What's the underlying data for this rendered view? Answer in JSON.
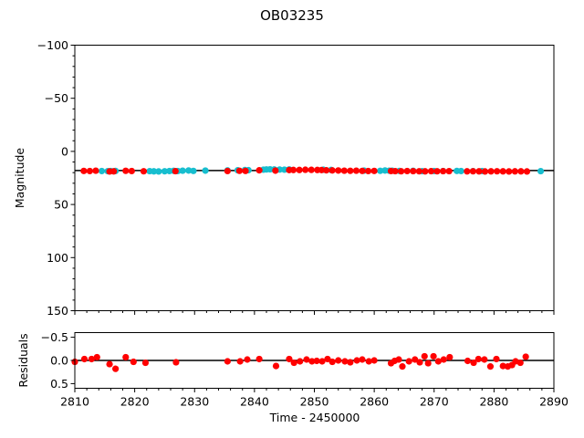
{
  "chart_data": [
    {
      "type": "scatter",
      "title": "OB03235",
      "xlabel": "",
      "ylabel": "Magnitude",
      "xlim": [
        2810,
        2890
      ],
      "ylim": [
        150,
        -100
      ],
      "y_inverted": true,
      "y_ticks": [
        -100,
        -50,
        0,
        50,
        100,
        150
      ],
      "y_tick_labels": [
        "−100",
        "−50",
        "0",
        "50",
        "100",
        "150"
      ],
      "grid": false,
      "model_line": {
        "y": 18,
        "color": "#000000"
      },
      "series": [
        {
          "color": "#17becf",
          "x": [
            2814.5,
            2815.5,
            2816.0,
            2816.8,
            2822.5,
            2823.2,
            2824.0,
            2825.0,
            2825.8,
            2826.5,
            2827.2,
            2828.0,
            2829.0,
            2829.8,
            2831.8,
            2835.5,
            2837.2,
            2838.4,
            2839.0,
            2841.5,
            2842.0,
            2842.6,
            2843.3,
            2844.2,
            2845.0,
            2845.8,
            2851.5,
            2852.8,
            2858.3,
            2861.0,
            2861.8,
            2862.5,
            2863.0,
            2864.2,
            2866.5,
            2868.0,
            2870.0,
            2871.5,
            2873.8,
            2874.5,
            2876.5,
            2878.0,
            2887.8
          ],
          "y": [
            18.5,
            18.6,
            18.5,
            18.4,
            18.6,
            18.8,
            18.9,
            18.7,
            18.5,
            18.3,
            18.5,
            18.2,
            18.0,
            18.4,
            18.1,
            17.9,
            17.8,
            17.6,
            17.7,
            17.2,
            17.0,
            16.9,
            17.0,
            17.1,
            17.2,
            17.0,
            17.3,
            17.5,
            18.1,
            18.3,
            18.0,
            18.2,
            18.2,
            18.4,
            18.3,
            18.6,
            18.5,
            18.5,
            18.4,
            18.5,
            18.6,
            18.5,
            18.6
          ]
        },
        {
          "color": "#ff0000",
          "x": [
            2811.5,
            2812.5,
            2813.5,
            2815.8,
            2816.5,
            2818.5,
            2819.5,
            2821.5,
            2826.8,
            2835.5,
            2837.5,
            2838.5,
            2840.8,
            2843.5,
            2845.8,
            2846.5,
            2847.5,
            2848.5,
            2849.5,
            2850.5,
            2851.2,
            2852.0,
            2853.0,
            2854.0,
            2855.0,
            2856.0,
            2857.0,
            2858.0,
            2859.0,
            2860.0,
            2862.8,
            2863.5,
            2864.5,
            2865.5,
            2866.5,
            2867.5,
            2868.5,
            2869.5,
            2870.5,
            2871.5,
            2872.5,
            2875.5,
            2876.5,
            2877.5,
            2878.5,
            2879.5,
            2880.5,
            2881.5,
            2882.5,
            2883.5,
            2884.5,
            2885.5
          ],
          "y": [
            18.4,
            18.5,
            18.2,
            18.9,
            18.8,
            18.3,
            18.5,
            18.7,
            18.6,
            18.5,
            18.3,
            18.4,
            17.8,
            18.1,
            17.6,
            17.5,
            17.5,
            17.3,
            17.4,
            17.5,
            17.6,
            17.8,
            17.9,
            18.0,
            18.2,
            18.3,
            18.2,
            18.4,
            18.5,
            18.4,
            18.5,
            18.6,
            18.7,
            18.5,
            18.6,
            18.7,
            18.8,
            18.6,
            18.7,
            18.6,
            18.6,
            18.8,
            18.7,
            18.8,
            18.9,
            18.8,
            18.7,
            18.8,
            18.9,
            18.8,
            18.8,
            18.9
          ]
        }
      ]
    },
    {
      "type": "scatter",
      "xlabel": "Time - 2450000",
      "ylabel": "Residuals",
      "xlim": [
        2810,
        2890
      ],
      "ylim": [
        0.6,
        -0.6
      ],
      "y_inverted": true,
      "x_ticks": [
        2810,
        2820,
        2830,
        2840,
        2850,
        2860,
        2870,
        2880,
        2890
      ],
      "x_tick_labels": [
        "2810",
        "2820",
        "2830",
        "2840",
        "2850",
        "2860",
        "2870",
        "2880",
        "2890"
      ],
      "y_ticks": [
        -0.5,
        0.0,
        0.5
      ],
      "y_tick_labels": [
        "−0.5",
        "0.0",
        "0.5"
      ],
      "grid": false,
      "zero_line": {
        "y": 0,
        "color": "#000000"
      },
      "series": [
        {
          "color": "#ff0000",
          "x": [
            2810.0,
            2811.6,
            2812.8,
            2813.7,
            2815.8,
            2816.8,
            2818.5,
            2819.8,
            2821.8,
            2826.9,
            2835.5,
            2837.6,
            2838.8,
            2840.8,
            2843.6,
            2845.8,
            2846.6,
            2847.6,
            2848.7,
            2849.6,
            2850.4,
            2851.3,
            2852.2,
            2853.0,
            2854.0,
            2855.1,
            2856.0,
            2857.1,
            2858.0,
            2859.1,
            2860.0,
            2862.8,
            2863.4,
            2864.1,
            2864.7,
            2865.8,
            2866.8,
            2867.6,
            2868.4,
            2869.0,
            2869.9,
            2870.7,
            2871.6,
            2872.6,
            2875.6,
            2876.6,
            2877.4,
            2878.4,
            2879.4,
            2880.4,
            2881.5,
            2882.3,
            2883.0,
            2883.6,
            2884.4,
            2885.3
          ],
          "y": [
            0.03,
            -0.03,
            -0.03,
            -0.07,
            0.08,
            0.18,
            -0.07,
            0.03,
            0.05,
            0.04,
            0.02,
            0.02,
            -0.02,
            -0.03,
            0.12,
            -0.03,
            0.05,
            0.02,
            -0.02,
            0.02,
            0.01,
            0.02,
            -0.03,
            0.03,
            0.0,
            0.02,
            0.04,
            0.0,
            -0.02,
            0.02,
            0.0,
            0.06,
            0.01,
            -0.02,
            0.13,
            0.02,
            -0.02,
            0.04,
            -0.09,
            0.06,
            -0.09,
            0.02,
            -0.02,
            -0.07,
            0.01,
            0.05,
            -0.03,
            -0.02,
            0.13,
            -0.03,
            0.12,
            0.13,
            0.1,
            0.02,
            0.05,
            -0.08
          ]
        }
      ]
    }
  ]
}
